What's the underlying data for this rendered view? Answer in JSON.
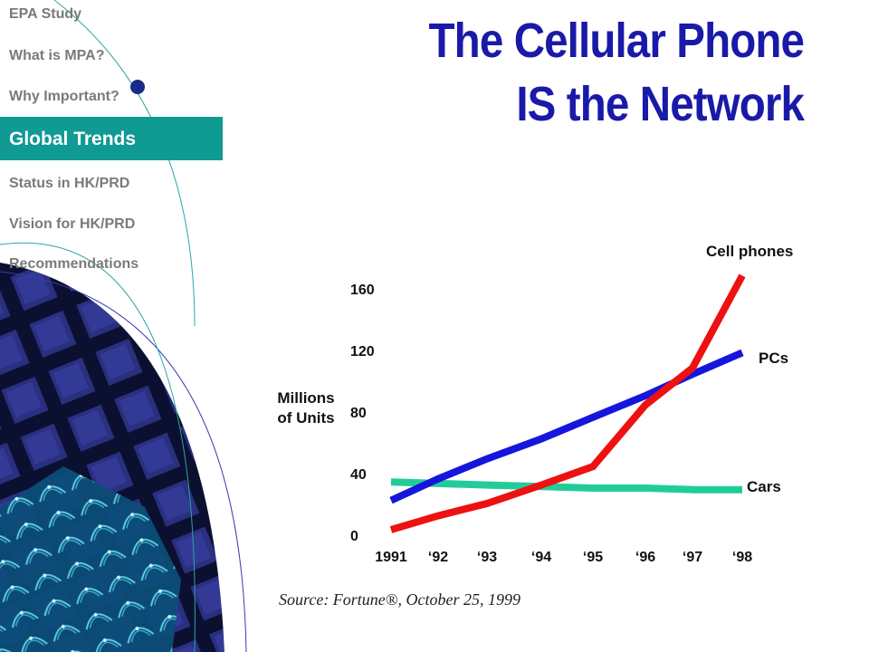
{
  "nav": {
    "items": [
      {
        "label": "EPA Study",
        "active": false
      },
      {
        "label": "What is MPA?",
        "active": false
      },
      {
        "label": "Why Important?",
        "active": false
      },
      {
        "label": "Global Trends",
        "active": true
      },
      {
        "label": "Status in HK/PRD",
        "active": false
      },
      {
        "label": "Vision for HK/PRD",
        "active": false
      },
      {
        "label": "Recommendations",
        "active": false
      }
    ],
    "active_color": "#0f9a94"
  },
  "title": {
    "line1": "The Cellular Phone",
    "line2": "IS the Network",
    "color": "#1a1aa8"
  },
  "source": "Source: Fortune®, October 25, 1999",
  "chart_data": {
    "type": "line",
    "categories": [
      "1991",
      "‘92",
      "‘93",
      "‘94",
      "‘95",
      "‘96",
      "‘97",
      "‘98"
    ],
    "ylabel": "Millions\nof Units",
    "ylim": [
      0,
      160
    ],
    "yticks": [
      "0",
      "40",
      "80",
      "120",
      "160"
    ],
    "grid": false,
    "series": [
      {
        "name": "Cell phones",
        "color": "#ee1111",
        "values": [
          3,
          12,
          20,
          32,
          44,
          84,
          108,
          168
        ]
      },
      {
        "name": "PCs",
        "color": "#1515dd",
        "values": [
          22,
          36,
          49,
          62,
          76,
          90,
          104,
          118
        ]
      },
      {
        "name": "Cars",
        "color": "#22cc99",
        "values": [
          34,
          33,
          32,
          31,
          30,
          30,
          29,
          29
        ]
      }
    ]
  }
}
